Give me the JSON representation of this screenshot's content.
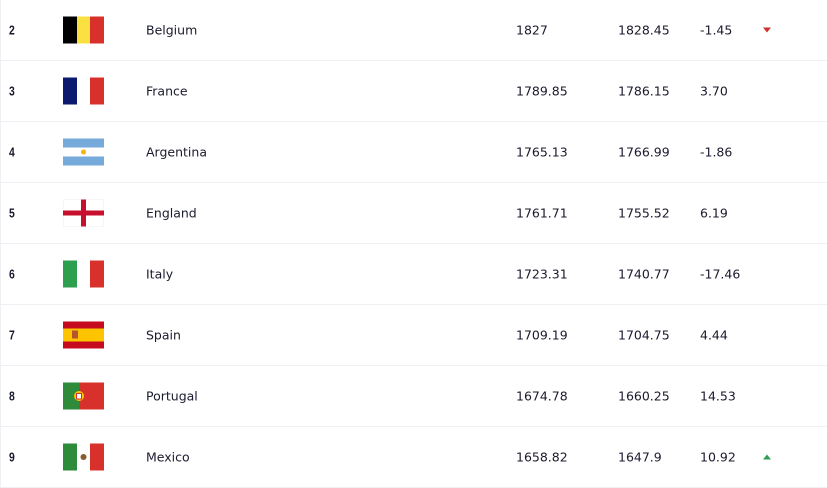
{
  "columns": [
    "rank",
    "flag",
    "country",
    "total_points",
    "previous_points",
    "change",
    "trend"
  ],
  "rows": [
    {
      "rank": "2",
      "country": "Belgium",
      "flag": "belgium",
      "total": "1827",
      "prev": "1828.45",
      "change": "-1.45",
      "trend": "down"
    },
    {
      "rank": "3",
      "country": "France",
      "flag": "france",
      "total": "1789.85",
      "prev": "1786.15",
      "change": "3.70",
      "trend": ""
    },
    {
      "rank": "4",
      "country": "Argentina",
      "flag": "argentina",
      "total": "1765.13",
      "prev": "1766.99",
      "change": "-1.86",
      "trend": ""
    },
    {
      "rank": "5",
      "country": "England",
      "flag": "england",
      "total": "1761.71",
      "prev": "1755.52",
      "change": "6.19",
      "trend": ""
    },
    {
      "rank": "6",
      "country": "Italy",
      "flag": "italy",
      "total": "1723.31",
      "prev": "1740.77",
      "change": "-17.46",
      "trend": ""
    },
    {
      "rank": "7",
      "country": "Spain",
      "flag": "spain",
      "total": "1709.19",
      "prev": "1704.75",
      "change": "4.44",
      "trend": ""
    },
    {
      "rank": "8",
      "country": "Portugal",
      "flag": "portugal",
      "total": "1674.78",
      "prev": "1660.25",
      "change": "14.53",
      "trend": ""
    },
    {
      "rank": "9",
      "country": "Mexico",
      "flag": "mexico",
      "total": "1658.82",
      "prev": "1647.9",
      "change": "10.92",
      "trend": "up"
    }
  ],
  "colors": {
    "down": "#d0312d",
    "up": "#2e9e4f",
    "border": "#eef0f4"
  }
}
